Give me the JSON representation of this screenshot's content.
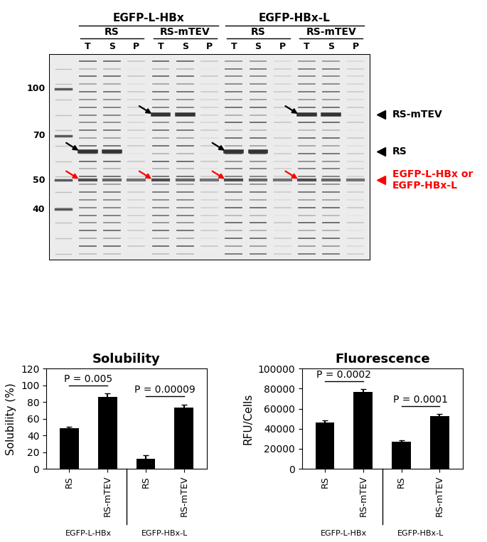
{
  "gel": {
    "constructs": [
      {
        "name": "EGFP-L-HBx",
        "conditions": [
          {
            "name": "RS",
            "lanes": [
              "T",
              "S",
              "P"
            ]
          },
          {
            "name": "RS-mTEV",
            "lanes": [
              "T",
              "S",
              "P"
            ]
          }
        ]
      },
      {
        "name": "EGFP-HBx-L",
        "conditions": [
          {
            "name": "RS",
            "lanes": [
              "T",
              "S",
              "P"
            ]
          },
          {
            "name": "RS-mTEV",
            "lanes": [
              "T",
              "S",
              "P"
            ]
          }
        ]
      }
    ],
    "markers_kda": [
      100,
      70,
      50,
      40
    ],
    "bands": [
      {
        "label": "RS-mTEV",
        "kda": 82,
        "color": "black"
      },
      {
        "label": "RS",
        "kda": 62,
        "color": "black"
      },
      {
        "label": "EGFP-L-HBx or EGFP-HBx-L",
        "kda": 50,
        "color": "red"
      }
    ]
  },
  "chart_data": [
    {
      "type": "bar",
      "title": "Solubility",
      "y_label": "Solubility (%)",
      "categories": [
        "RS",
        "RS-mTEV",
        "RS",
        "RS-mTEV"
      ],
      "groups": [
        {
          "name": "EGFP-L-HBx",
          "p_value": "P = 0.005"
        },
        {
          "name": "EGFP-HBx-L",
          "p_value": "P = 0.00009"
        }
      ],
      "values": [
        49,
        86,
        12,
        73
      ],
      "errors": [
        1,
        4,
        4,
        4
      ],
      "color": "black",
      "ylim": [
        0,
        120
      ],
      "yticks": [
        0,
        20,
        40,
        60,
        80,
        100,
        120
      ]
    },
    {
      "type": "bar",
      "title": "Fluorescence",
      "y_label": "RFU/Cells",
      "categories": [
        "RS",
        "RS-mTEV",
        "RS",
        "RS-mTEV"
      ],
      "groups": [
        {
          "name": "EGFP-L-HBx",
          "p_value": "P = 0.0002"
        },
        {
          "name": "EGFP-HBx-L",
          "p_value": "P = 0.0001"
        }
      ],
      "values": [
        46000,
        77000,
        27000,
        52500
      ],
      "errors": [
        2500,
        2500,
        1500,
        2000
      ],
      "color": "black",
      "ylim": [
        0,
        100000
      ],
      "yticks": [
        0,
        20000,
        40000,
        60000,
        80000,
        100000
      ]
    }
  ]
}
